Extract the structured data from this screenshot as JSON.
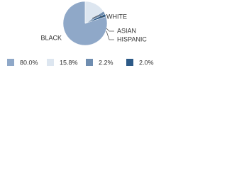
{
  "chart_data": {
    "type": "pie",
    "categories": [
      "BLACK",
      "WHITE",
      "ASIAN",
      "HISPANIC"
    ],
    "values": [
      80.0,
      15.8,
      2.2,
      2.0
    ],
    "value_labels": [
      "80.0%",
      "15.8%",
      "2.2%",
      "2.0%"
    ],
    "colors": [
      "#8fa8c8",
      "#dde6f0",
      "#6f8db0",
      "#2d5a87"
    ]
  }
}
